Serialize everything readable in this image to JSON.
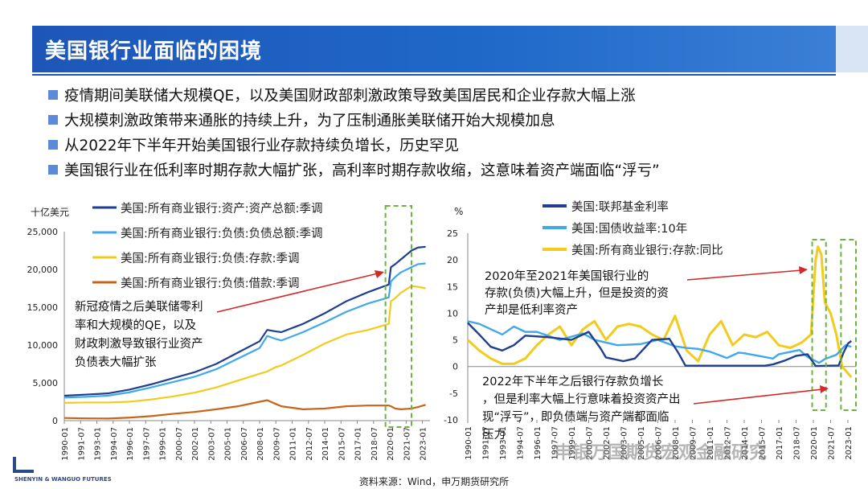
{
  "header": {
    "title": "美国银行业面临的困境"
  },
  "bullets": [
    "疫情期间美联储大规模QE，以及美国财政部刺激政策导致美国居民和企业存款大幅上涨",
    "大规模刺激政策带来通胀的持续上升，为了压制通胀美联储开始大规模加息",
    "从2022年下半年开始美国银行业存款持续负增长，历史罕见",
    "美国银行业在低利率时期存款大幅扩张，高利率时期存款收缩，这意味着资产端面临“浮亏”"
  ],
  "footer": {
    "source": "资料来源：Wind，申万期货研究所",
    "watermark": "申银万国期货宏观金融研究",
    "logo_text": "SHENYIN & WANGUO FUTURES"
  },
  "chart_data": [
    {
      "type": "line",
      "ylabel": "十亿美元",
      "ylim": [
        0,
        25000
      ],
      "yticks": [
        "0",
        "5,000",
        "10,000",
        "15,000",
        "20,000",
        "25,000"
      ],
      "xticks": [
        "1990-01",
        "1991-07",
        "1993-01",
        "1994-07",
        "1996-01",
        "1997-07",
        "1999-01",
        "2000-07",
        "2002-01",
        "2003-07",
        "2005-01",
        "2006-07",
        "2008-01",
        "2009-07",
        "2011-01",
        "2012-07",
        "2014-01",
        "2015-07",
        "2017-01",
        "2018-07",
        "2020-01",
        "2021-07",
        "2023-01"
      ],
      "x": [
        1990,
        1992,
        1994,
        1996,
        1998,
        2000,
        2002,
        2004,
        2006,
        2008,
        2008.7,
        2009.5,
        2010,
        2012,
        2014,
        2016,
        2018,
        2019.9,
        2020.1,
        2020.5,
        2021,
        2022,
        2022.6,
        2023.3
      ],
      "series": [
        {
          "name": "美国:所有商业银行:资产:资产总额:季调",
          "color": "#1f3f8f",
          "values": [
            3300,
            3450,
            3600,
            4100,
            4800,
            5600,
            6400,
            7500,
            9000,
            10500,
            12000,
            11800,
            11700,
            12800,
            14200,
            15800,
            17000,
            18000,
            20300,
            20700,
            21300,
            22500,
            22900,
            23000
          ]
        },
        {
          "name": "美国:所有商业银行:负债:负债总额:季调",
          "color": "#41a8ea",
          "values": [
            3050,
            3150,
            3300,
            3750,
            4400,
            5100,
            5800,
            6800,
            8200,
            9600,
            11200,
            10800,
            10600,
            11700,
            13000,
            14400,
            15500,
            16300,
            18400,
            19000,
            19600,
            20300,
            20700,
            20800
          ]
        },
        {
          "name": "美国:所有商业银行:负债:存款:季调",
          "color": "#f2cb1c",
          "values": [
            2350,
            2400,
            2400,
            2500,
            2800,
            3200,
            3700,
            4400,
            5300,
            6200,
            6500,
            7100,
            7300,
            8700,
            10200,
            11400,
            12000,
            12800,
            15800,
            16200,
            16900,
            17800,
            17700,
            17500
          ]
        },
        {
          "name": "美国:所有商业银行:负债:借款:季调",
          "color": "#c86419",
          "values": [
            350,
            300,
            280,
            400,
            600,
            900,
            1150,
            1500,
            1900,
            2500,
            2700,
            2200,
            1900,
            1500,
            1600,
            1900,
            2000,
            2000,
            1900,
            1600,
            1500,
            1600,
            1800,
            2100
          ]
        }
      ],
      "annotation": "新冠疫情之后美联储零利率和大规模的QE，以及财政刺激导致银行业资产负债表大幅扩张"
    },
    {
      "type": "line",
      "ylabel": "%",
      "ylim": [
        -10,
        25
      ],
      "yticks": [
        "-10",
        "-5",
        "0",
        "5",
        "10",
        "15",
        "20",
        "25"
      ],
      "xticks": [
        "1990-01",
        "1991-07",
        "1993-01",
        "1994-07",
        "1996-01",
        "1997-07",
        "1999-01",
        "2000-07",
        "2002-01",
        "2003-07",
        "2005-01",
        "2006-07",
        "2008-01",
        "2009-07",
        "2011-01",
        "2012-07",
        "2014-01",
        "2015-07",
        "2017-01",
        "2018-07",
        "2020-01",
        "2021-07",
        "2023-01"
      ],
      "series": [
        {
          "name": "美国:联邦基金利率",
          "color": "#1f3f8f",
          "x": [
            1990,
            1991,
            1992,
            1993,
            1994,
            1995,
            1997,
            1999,
            2000.5,
            2001.5,
            2002,
            2003.5,
            2004.5,
            2006,
            2007.5,
            2008.3,
            2008.9,
            2015.8,
            2016.5,
            2017.5,
            2018.5,
            2019.5,
            2020.2,
            2022.2,
            2022.6,
            2023,
            2023.3
          ],
          "values": [
            8.2,
            6,
            3.7,
            3,
            4,
            5.8,
            5.5,
            5,
            6.5,
            3.5,
            1.7,
            1,
            1.5,
            5,
            5.2,
            2.5,
            0.15,
            0.15,
            0.4,
            1.1,
            2,
            2.3,
            0.1,
            0.2,
            2.5,
            4.3,
            4.8
          ]
        },
        {
          "name": "美国:国债收益率:10年",
          "color": "#41a8ea",
          "x": [
            1990,
            1991,
            1993,
            1994,
            1995,
            1996,
            1998,
            2000,
            2001,
            2003,
            2005,
            2006.5,
            2008,
            2009,
            2010,
            2011,
            2012.5,
            2013.5,
            2014,
            2015,
            2016.5,
            2017,
            2018.8,
            2019.5,
            2020.5,
            2021,
            2022,
            2022.8,
            2023.3
          ],
          "values": [
            8.5,
            8,
            6,
            7.5,
            6.5,
            6.5,
            5,
            6.2,
            5,
            4,
            4.2,
            5,
            3.8,
            3.5,
            3.3,
            2.8,
            1.6,
            2.6,
            2.5,
            2.1,
            1.5,
            2.3,
            3.1,
            1.8,
            0.7,
            1.4,
            2.2,
            4,
            3.7
          ]
        },
        {
          "name": "美国:所有商业银行:存款:同比",
          "color": "#f2cb1c",
          "x": [
            1990,
            1991,
            1992,
            1993,
            1994,
            1995,
            1996,
            1997,
            1998,
            1999,
            2000,
            2001,
            2002,
            2003,
            2004,
            2005,
            2006,
            2007,
            2008,
            2009,
            2010,
            2011,
            2012,
            2013,
            2014,
            2015,
            2016,
            2017,
            2018,
            2019,
            2019.8,
            2020.2,
            2020.4,
            2020.7,
            2021,
            2021.5,
            2022,
            2022.5,
            2023.3
          ],
          "values": [
            5,
            3,
            1.5,
            0.5,
            0.5,
            1.5,
            4,
            6,
            7.5,
            4,
            7,
            8.5,
            5,
            7.5,
            8,
            7.5,
            6,
            5,
            9.5,
            3,
            1,
            6,
            8.5,
            4,
            6,
            5.5,
            6.5,
            4,
            3.5,
            4.5,
            6,
            20,
            22.5,
            21,
            12,
            10,
            6,
            0,
            -2
          ]
        }
      ],
      "annotations": [
        "2020年至2021年美国银行业的存款(负债)大幅上升，但是投资的资产却是低利率资产",
        "2022年下半年之后银行存款负增长，但是利率大幅上行意味着投资资产出现“浮亏”，即负债端与资产端都面临压力"
      ]
    }
  ]
}
